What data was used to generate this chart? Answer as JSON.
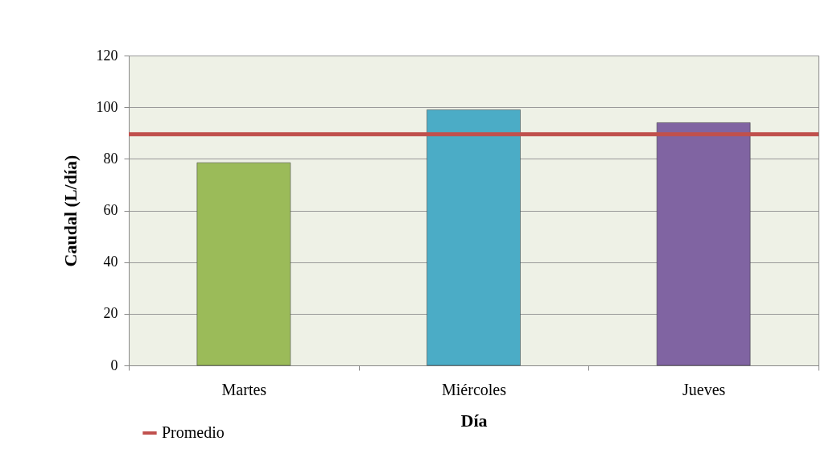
{
  "chart_data": {
    "type": "bar",
    "xlabel": "Día",
    "ylabel": "Caudal (L/día)",
    "categories": [
      "Martes",
      "Miércoles",
      "Jueves"
    ],
    "values": [
      78.5,
      99,
      94
    ],
    "colors": [
      "#9bbb59",
      "#4bacc6",
      "#8064a2"
    ],
    "ylim": [
      0,
      120
    ],
    "yticks": [
      0,
      20,
      40,
      60,
      80,
      100,
      120
    ],
    "grid": "y",
    "legend": "bottom left",
    "ref_lines": [
      {
        "axis": "y",
        "value": 89.5,
        "label": "Promedio",
        "color": "#c0504d"
      }
    ]
  }
}
